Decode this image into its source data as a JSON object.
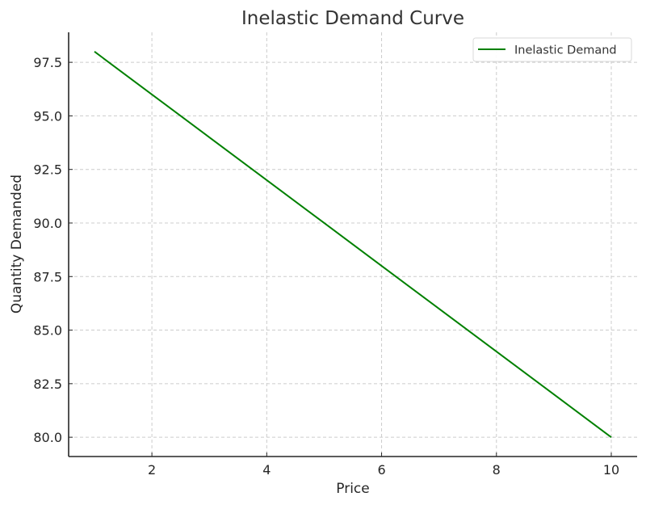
{
  "chart_data": {
    "type": "line",
    "title": "Inelastic Demand Curve",
    "xlabel": "Price",
    "ylabel": "Quantity Demanded",
    "xlim": [
      0.55,
      10.45
    ],
    "ylim": [
      79.1,
      98.9
    ],
    "xticks": [
      2,
      4,
      6,
      8,
      10
    ],
    "xtick_labels": [
      "2",
      "4",
      "6",
      "8",
      "10"
    ],
    "yticks": [
      80.0,
      82.5,
      85.0,
      87.5,
      90.0,
      92.5,
      95.0,
      97.5
    ],
    "ytick_labels": [
      "80.0",
      "82.5",
      "85.0",
      "87.5",
      "90.0",
      "92.5",
      "95.0",
      "97.5"
    ],
    "grid": true,
    "legend_position": "upper right",
    "series": [
      {
        "name": "Inelastic Demand",
        "color": "#008000",
        "x": [
          1,
          2,
          3,
          4,
          5,
          6,
          7,
          8,
          9,
          10
        ],
        "y": [
          98,
          96,
          94,
          92,
          90,
          88,
          86,
          84,
          82,
          80
        ]
      }
    ]
  }
}
